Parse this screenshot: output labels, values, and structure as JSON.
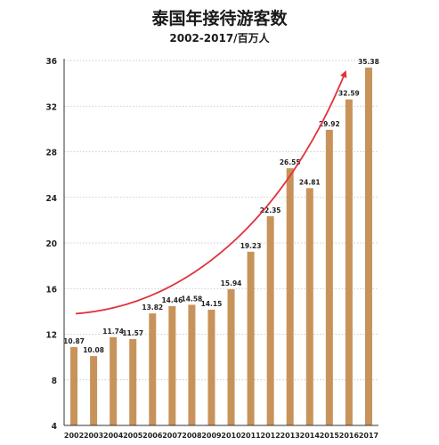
{
  "title": "泰国年接待游客数",
  "subtitle": "2002-2017/百万人",
  "colors": {
    "bar": "#c8935a",
    "arrow": "#e0333c",
    "grid": "#bdbdbd",
    "axis": "#333333"
  },
  "chart_data": {
    "type": "bar",
    "categories": [
      "2002",
      "2003",
      "2004",
      "2005",
      "2006",
      "2007",
      "2008",
      "2009",
      "2010",
      "2011",
      "2012",
      "2013",
      "2014",
      "2015",
      "2016",
      "2017"
    ],
    "values": [
      10.87,
      10.08,
      11.74,
      11.57,
      13.82,
      14.46,
      14.58,
      14.15,
      15.94,
      19.23,
      22.35,
      26.55,
      24.81,
      29.92,
      32.59,
      35.38
    ],
    "value_labels": [
      "10.87",
      "10.08",
      "11.74",
      "11.57",
      "13.82",
      "14.46",
      "14.58",
      "14.15",
      "15.94",
      "19.23",
      "22.35",
      "26.55",
      "24.81",
      "29.92",
      "32.59",
      "35.38"
    ],
    "ylim": [
      4,
      36
    ],
    "yticks": [
      4,
      8,
      12,
      16,
      20,
      24,
      28,
      32,
      36
    ],
    "grid": true,
    "annotation": "upward trend arrow"
  }
}
